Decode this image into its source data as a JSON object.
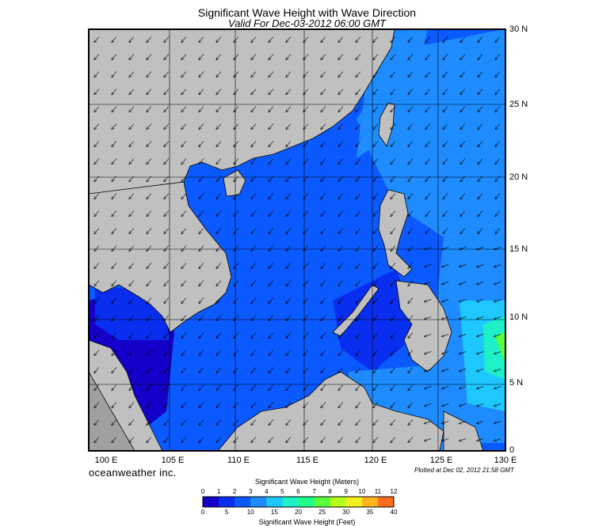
{
  "title": "Significant Wave Height with Wave Direction",
  "subtitle": "Valid For Dec-03-2012 06:00 GMT",
  "lat_labels": [
    "30 N",
    "25 N",
    "20 N",
    "15 N",
    "10 N",
    "5 N",
    "0"
  ],
  "lon_labels": [
    "100 E",
    "105 E",
    "110 E",
    "115 E",
    "120 E",
    "125 E",
    "130 E"
  ],
  "brand": "oceanweather inc.",
  "plotted": "Plotted at Dec 02, 2012 21:58 GMT",
  "colorbar": {
    "title_meters": "Significant Wave Height (Meters)",
    "title_feet": "Significant Wave Height (Feet)",
    "meter_ticks": [
      "0",
      "1",
      "2",
      "3",
      "4",
      "5",
      "6",
      "7",
      "8",
      "9",
      "10",
      "11",
      "12"
    ],
    "feet_ticks": [
      "0",
      "5",
      "10",
      "15",
      "20",
      "25",
      "30",
      "35",
      "40"
    ],
    "colors": [
      "#1400c8",
      "#0a2ef0",
      "#0a5aff",
      "#1e8cff",
      "#1ec8ff",
      "#1ef0c8",
      "#1eff8c",
      "#5aff3c",
      "#b4ff1e",
      "#f0f01e",
      "#ffb41e",
      "#ff6e1e",
      "#ff1e1e"
    ]
  },
  "map": {
    "extent": {
      "lon_min": 100,
      "lon_max": 130,
      "lat_min": 0,
      "lat_max": 30
    },
    "land_color": "#c0c0c0",
    "wave_direction": "northeast monsoon, arrows pointing southwest"
  }
}
